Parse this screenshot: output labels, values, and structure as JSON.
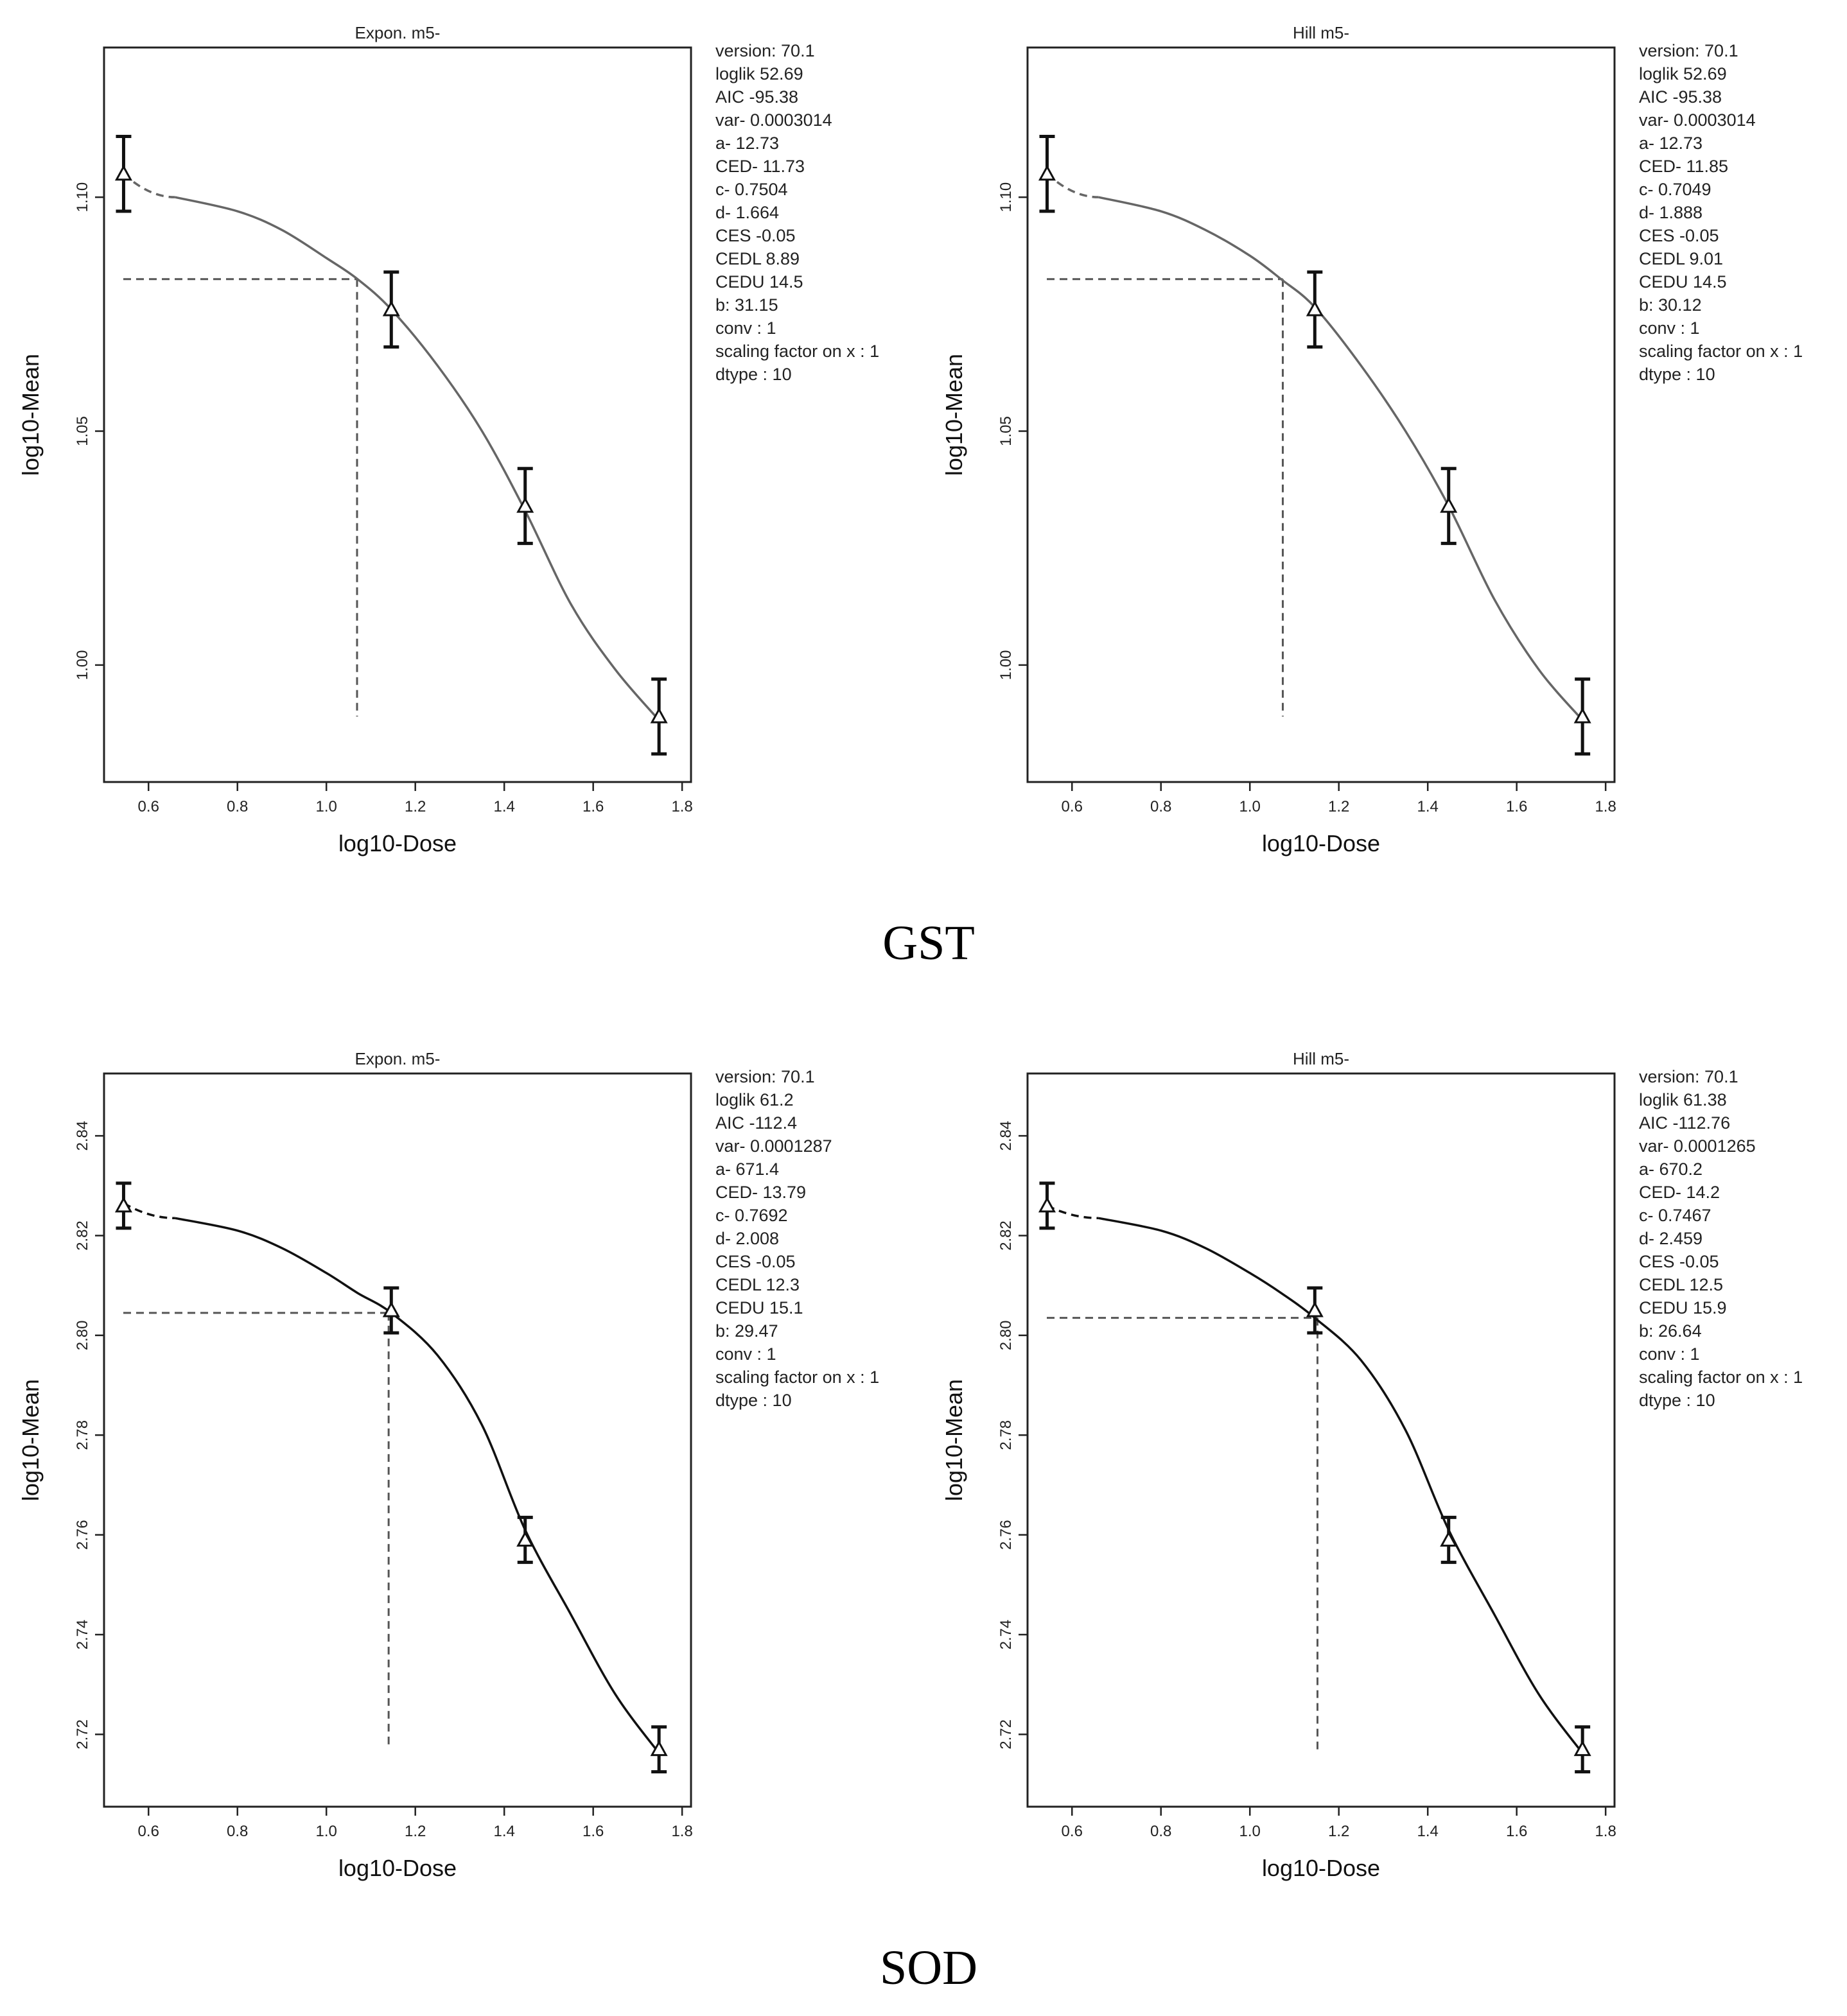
{
  "sections": [
    {
      "label": "GST"
    },
    {
      "label": "SOD"
    }
  ],
  "chart_data": [
    {
      "type": "line",
      "section": "GST",
      "title": "Expon. m5-",
      "xlabel": "log10-Dose",
      "ylabel": "log10-Mean",
      "xlim": [
        0.5,
        1.82
      ],
      "ylim": [
        0.975,
        1.132
      ],
      "xticks": [
        0.6,
        0.8,
        1.0,
        1.2,
        1.4,
        1.6,
        1.8
      ],
      "xtick_labels": [
        "0.6",
        "0.8",
        "1.0",
        "1.2",
        "1.4",
        "1.6",
        "1.8"
      ],
      "yticks": [
        1.0,
        1.05,
        1.1
      ],
      "ytick_labels": [
        "1.00",
        "1.05",
        "1.10"
      ],
      "points": {
        "x": [
          0.544,
          1.146,
          1.447,
          1.748
        ],
        "y": [
          1.105,
          1.076,
          1.034,
          0.989
        ],
        "err": [
          0.008,
          0.008,
          0.008,
          0.008
        ]
      },
      "curve": {
        "x_start": 0.544,
        "y_start": 1.105,
        "x_mid": 0.66,
        "y_mid": 1.1,
        "fit_x": [
          0.66,
          0.8,
          0.9,
          1.0,
          1.07,
          1.146,
          1.25,
          1.35,
          1.447,
          1.55,
          1.65,
          1.75
        ],
        "fit_y": [
          1.1,
          1.097,
          1.093,
          1.087,
          1.0825,
          1.076,
          1.064,
          1.05,
          1.033,
          1.013,
          0.999,
          0.988
        ]
      },
      "ced_line": {
        "x": 1.069,
        "y": 1.0825,
        "ymin": 0.989
      },
      "params": [
        "version: 70.1",
        "loglik   52.69",
        "AIC   -95.38",
        "var-   0.0003014",
        "a-   12.73",
        "CED-   11.73",
        "c-   0.7504",
        "d-   1.664",
        "CES   -0.05",
        "CEDL   8.89",
        "CEDU   14.5",
        "b: 31.15",
        "conv : 1",
        "scaling factor on x : 1",
        "dtype :  10"
      ]
    },
    {
      "type": "line",
      "section": "GST",
      "title": "Hill m5-",
      "xlabel": "log10-Dose",
      "ylabel": "log10-Mean",
      "xlim": [
        0.5,
        1.82
      ],
      "ylim": [
        0.975,
        1.132
      ],
      "xticks": [
        0.6,
        0.8,
        1.0,
        1.2,
        1.4,
        1.6,
        1.8
      ],
      "xtick_labels": [
        "0.6",
        "0.8",
        "1.0",
        "1.2",
        "1.4",
        "1.6",
        "1.8"
      ],
      "yticks": [
        1.0,
        1.05,
        1.1
      ],
      "ytick_labels": [
        "1.00",
        "1.05",
        "1.10"
      ],
      "points": {
        "x": [
          0.544,
          1.146,
          1.447,
          1.748
        ],
        "y": [
          1.105,
          1.076,
          1.034,
          0.989
        ],
        "err": [
          0.008,
          0.008,
          0.008,
          0.008
        ]
      },
      "curve": {
        "x_start": 0.544,
        "y_start": 1.105,
        "x_mid": 0.66,
        "y_mid": 1.1,
        "fit_x": [
          0.66,
          0.8,
          0.9,
          1.0,
          1.07,
          1.146,
          1.25,
          1.35,
          1.447,
          1.55,
          1.65,
          1.75
        ],
        "fit_y": [
          1.1,
          1.097,
          1.093,
          1.0875,
          1.0825,
          1.0765,
          1.064,
          1.05,
          1.034,
          1.014,
          0.999,
          0.988
        ]
      },
      "ced_line": {
        "x": 1.074,
        "y": 1.0825,
        "ymin": 0.989
      },
      "params": [
        "version: 70.1",
        "loglik   52.69",
        "AIC   -95.38",
        "var-   0.0003014",
        "a-   12.73",
        "CED-   11.85",
        "c-   0.7049",
        "d-   1.888",
        "CES   -0.05",
        "CEDL   9.01",
        "CEDU   14.5",
        "b: 30.12",
        "conv : 1",
        "scaling factor on x : 1",
        "dtype :  10"
      ]
    },
    {
      "type": "line",
      "section": "SOD",
      "title": "Expon. m5-",
      "xlabel": "log10-Dose",
      "ylabel": "log10-Mean",
      "xlim": [
        0.5,
        1.82
      ],
      "ylim": [
        2.7055,
        2.8525
      ],
      "xticks": [
        0.6,
        0.8,
        1.0,
        1.2,
        1.4,
        1.6,
        1.8
      ],
      "xtick_labels": [
        "0.6",
        "0.8",
        "1.0",
        "1.2",
        "1.4",
        "1.6",
        "1.8"
      ],
      "yticks": [
        2.72,
        2.74,
        2.76,
        2.78,
        2.8,
        2.82,
        2.84
      ],
      "ytick_labels": [
        "2.72",
        "2.74",
        "2.76",
        "2.78",
        "2.80",
        "2.82",
        "2.84"
      ],
      "points": {
        "x": [
          0.544,
          1.146,
          1.447,
          1.748
        ],
        "y": [
          2.826,
          2.805,
          2.759,
          2.717
        ],
        "err": [
          0.0045,
          0.0045,
          0.0045,
          0.0045
        ]
      },
      "curve": {
        "x_start": 0.544,
        "y_start": 2.8265,
        "x_mid": 0.66,
        "y_mid": 2.8235,
        "fit_x": [
          0.66,
          0.8,
          0.9,
          1.0,
          1.07,
          1.146,
          1.25,
          1.35,
          1.447,
          1.55,
          1.65,
          1.75
        ],
        "fit_y": [
          2.8235,
          2.821,
          2.8175,
          2.8125,
          2.8085,
          2.8045,
          2.796,
          2.782,
          2.761,
          2.744,
          2.728,
          2.716
        ]
      },
      "ced_line": {
        "x": 1.14,
        "y": 2.8045,
        "ymin": 2.717
      },
      "params": [
        "version: 70.1",
        "loglik   61.2",
        "AIC   -112.4",
        "var-   0.0001287",
        "a-   671.4",
        "CED-   13.79",
        "c-   0.7692",
        "d-   2.008",
        "CES   -0.05",
        "CEDL   12.3",
        "CEDU   15.1",
        "b: 29.47",
        "conv : 1",
        "scaling factor on x : 1",
        "dtype :  10"
      ]
    },
    {
      "type": "line",
      "section": "SOD",
      "title": "Hill m5-",
      "xlabel": "log10-Dose",
      "ylabel": "log10-Mean",
      "xlim": [
        0.5,
        1.82
      ],
      "ylim": [
        2.7055,
        2.8525
      ],
      "xticks": [
        0.6,
        0.8,
        1.0,
        1.2,
        1.4,
        1.6,
        1.8
      ],
      "xtick_labels": [
        "0.6",
        "0.8",
        "1.0",
        "1.2",
        "1.4",
        "1.6",
        "1.8"
      ],
      "yticks": [
        2.72,
        2.74,
        2.76,
        2.78,
        2.8,
        2.82,
        2.84
      ],
      "ytick_labels": [
        "2.72",
        "2.74",
        "2.76",
        "2.78",
        "2.80",
        "2.82",
        "2.84"
      ],
      "points": {
        "x": [
          0.544,
          1.146,
          1.447,
          1.748
        ],
        "y": [
          2.826,
          2.805,
          2.759,
          2.717
        ],
        "err": [
          0.0045,
          0.0045,
          0.0045,
          0.0045
        ]
      },
      "curve": {
        "x_start": 0.544,
        "y_start": 2.826,
        "x_mid": 0.66,
        "y_mid": 2.8235,
        "fit_x": [
          0.66,
          0.8,
          0.9,
          1.0,
          1.07,
          1.146,
          1.25,
          1.35,
          1.447,
          1.55,
          1.65,
          1.75
        ],
        "fit_y": [
          2.8235,
          2.821,
          2.8175,
          2.8125,
          2.8085,
          2.8035,
          2.795,
          2.781,
          2.761,
          2.744,
          2.728,
          2.716
        ]
      },
      "ced_line": {
        "x": 1.152,
        "y": 2.8035,
        "ymin": 2.717
      },
      "params": [
        "version: 70.1",
        "loglik   61.38",
        "AIC   -112.76",
        "var-   0.0001265",
        "a-   670.2",
        "CED-   14.2",
        "c-   0.7467",
        "d-   2.459",
        "CES   -0.05",
        "CEDL   12.5",
        "CEDU   15.9",
        "b: 26.64",
        "conv : 1",
        "scaling factor on x : 1",
        "dtype :  10"
      ]
    }
  ]
}
